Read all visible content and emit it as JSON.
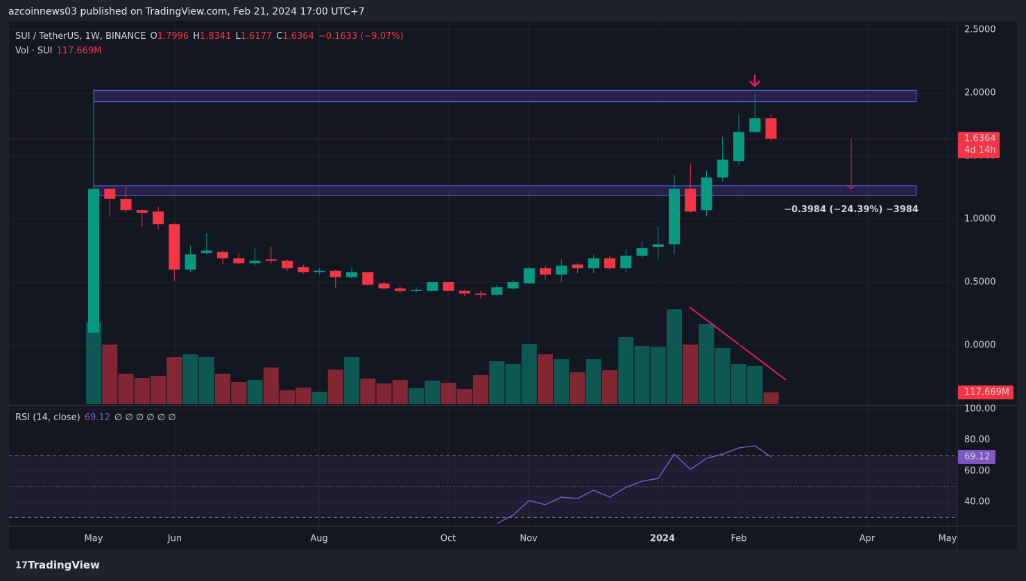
{
  "header": "azcoinnews03 published on TradingView.com, Feb 21, 2024 17:00 UTC+7",
  "footer": "TradingView",
  "chart_data": {
    "type": "candlestick",
    "symbol": "SUI / TetherUS, 1W, BINANCE",
    "ohlc_letters": [
      "O",
      "H",
      "L",
      "C"
    ],
    "change_label": "−0.1633 (−9.07%)",
    "countdown": "4d 14h",
    "volume_name": "Vol · SUI",
    "last_volume_label": "117.669M",
    "up_color": "#089981",
    "down_color": "#f23645",
    "x": [
      0,
      1,
      2,
      3,
      4,
      5,
      6,
      7,
      8,
      9,
      10,
      11,
      12,
      13,
      14,
      15,
      16,
      17,
      18,
      19,
      20,
      21,
      22,
      23,
      24,
      25,
      26,
      27,
      28,
      29,
      30,
      31,
      32,
      33,
      34,
      35,
      36,
      37,
      38,
      39,
      40,
      41,
      42
    ],
    "open": [
      0.1,
      1.24,
      1.16,
      1.07,
      1.06,
      0.96,
      0.6,
      0.73,
      0.74,
      0.69,
      0.65,
      0.68,
      0.67,
      0.62,
      0.58,
      0.59,
      0.54,
      0.58,
      0.49,
      0.45,
      0.43,
      0.43,
      0.5,
      0.43,
      0.41,
      0.4,
      0.45,
      0.49,
      0.61,
      0.56,
      0.64,
      0.61,
      0.69,
      0.61,
      0.71,
      0.78,
      0.8,
      1.24,
      1.07,
      1.33,
      1.46,
      1.69,
      1.7996
    ],
    "high": [
      2.0,
      1.24,
      1.26,
      1.08,
      1.1,
      0.97,
      0.79,
      0.89,
      0.75,
      0.73,
      0.77,
      0.78,
      0.68,
      0.64,
      0.61,
      0.6,
      0.62,
      0.58,
      0.5,
      0.47,
      0.46,
      0.5,
      0.5,
      0.44,
      0.43,
      0.48,
      0.52,
      0.62,
      0.63,
      0.68,
      0.65,
      0.72,
      0.71,
      0.76,
      0.82,
      0.94,
      1.35,
      1.44,
      1.38,
      1.65,
      1.83,
      1.99,
      1.8341
    ],
    "low": [
      0.1,
      1.02,
      1.05,
      0.94,
      0.92,
      0.51,
      0.58,
      0.72,
      0.64,
      0.64,
      0.63,
      0.65,
      0.59,
      0.57,
      0.56,
      0.45,
      0.53,
      0.47,
      0.44,
      0.42,
      0.42,
      0.43,
      0.43,
      0.39,
      0.37,
      0.39,
      0.44,
      0.49,
      0.52,
      0.5,
      0.57,
      0.57,
      0.6,
      0.58,
      0.69,
      0.68,
      0.72,
      1.05,
      1.02,
      1.3,
      1.43,
      1.68,
      1.6177
    ],
    "close": [
      1.24,
      1.16,
      1.07,
      1.05,
      0.96,
      0.6,
      0.72,
      0.75,
      0.69,
      0.65,
      0.67,
      0.67,
      0.61,
      0.58,
      0.59,
      0.54,
      0.58,
      0.48,
      0.45,
      0.43,
      0.44,
      0.5,
      0.43,
      0.41,
      0.4,
      0.46,
      0.5,
      0.61,
      0.56,
      0.63,
      0.61,
      0.69,
      0.61,
      0.71,
      0.77,
      0.8,
      1.24,
      1.06,
      1.33,
      1.47,
      1.69,
      1.8,
      1.6364
    ],
    "volume": [
      816.6,
      595.1,
      304.5,
      263.0,
      283.7,
      470.6,
      498.2,
      470.6,
      304.5,
      221.4,
      242.2,
      366.8,
      138.4,
      166.1,
      124.6,
      346.0,
      470.6,
      256.0,
      207.6,
      242.2,
      159.2,
      235.3,
      214.5,
      152.2,
      290.6,
      429.0,
      401.4,
      602.0,
      498.2,
      449.8,
      318.3,
      449.8,
      339.1,
      671.2,
      581.3,
      574.4,
      948.0,
      595.1,
      802.7,
      560.5,
      401.4,
      380.6,
      117.669
    ],
    "vlim": [
      0,
      3827
    ],
    "xlim": [
      -5.25,
      53.55
    ],
    "xticks": [
      {
        "value": 0,
        "label": "May"
      },
      {
        "value": 5.03,
        "label": "Jun"
      },
      {
        "value": 13.98,
        "label": "Aug"
      },
      {
        "value": 21.98,
        "label": "Oct"
      },
      {
        "value": 26.97,
        "label": "Nov"
      },
      {
        "value": 35.27,
        "label": "2024"
      },
      {
        "value": 40,
        "label": "Feb"
      },
      {
        "value": 47.96,
        "label": "Apr"
      },
      {
        "value": 52.95,
        "label": "May"
      }
    ],
    "ylim": [
      -0.467,
      2.571
    ],
    "yticks": [
      {
        "value": 2.5,
        "label": "2.5000"
      },
      {
        "value": 2,
        "label": "2.0000"
      },
      {
        "value": 1.5,
        "label": "1.5000"
      },
      {
        "value": 1,
        "label": "1.0000"
      },
      {
        "value": 0.5,
        "label": "0.5000"
      },
      {
        "value": 0,
        "label": "0.0000"
      }
    ],
    "grid": true,
    "zones": [
      {
        "x0": 0,
        "x1": 51,
        "from": 1.93,
        "to": 2.02
      },
      {
        "x0": 0,
        "x1": 51,
        "from": 1.187,
        "to": 1.264
      }
    ],
    "measure": {
      "x": 46.97,
      "from": 1.6364,
      "to": 1.238,
      "label": "−0.3984 (−24.39%) −3984"
    },
    "rsi": {
      "name": "RSI (14, close)",
      "value_label": "69.12",
      "extras": "∅ ∅ ∅ ∅ ∅ ∅",
      "color": "#7e57c2",
      "values": [
        null,
        null,
        null,
        null,
        null,
        null,
        null,
        null,
        null,
        null,
        null,
        null,
        null,
        null,
        null,
        null,
        null,
        null,
        null,
        null,
        null,
        null,
        null,
        null,
        null,
        26,
        31.5,
        40.9,
        38.2,
        43.1,
        42.2,
        47.6,
        43.1,
        49.4,
        53.4,
        55.2,
        70.9,
        61.0,
        68.2,
        70.9,
        74.9,
        76.3,
        69.12
      ],
      "ylim": [
        24.77,
        100.9
      ],
      "yticks": [
        {
          "value": 100,
          "label": "100.00"
        },
        {
          "value": 80,
          "label": "80.00"
        },
        {
          "value": 60,
          "label": "60.00"
        },
        {
          "value": 40,
          "label": "40.00"
        }
      ],
      "levels": [
        70,
        50,
        30
      ]
    }
  }
}
